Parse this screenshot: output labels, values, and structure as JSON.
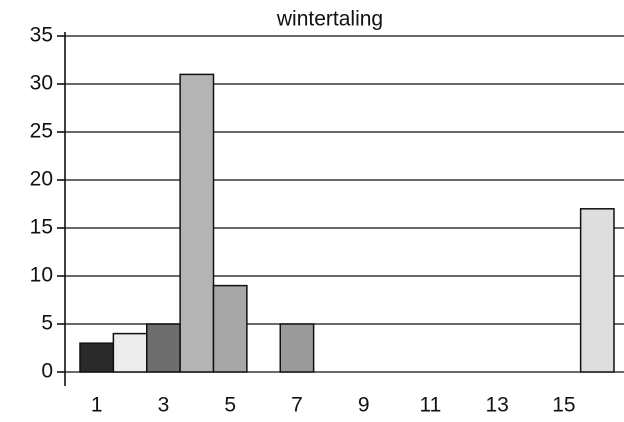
{
  "chart_data": {
    "type": "bar",
    "title": "wintertaling",
    "categories": [
      "1",
      null,
      "3",
      null,
      "5",
      null,
      "7",
      null,
      "9",
      null,
      "11",
      null,
      "13",
      null,
      "15",
      null
    ],
    "values": [
      3,
      4,
      5,
      31,
      9,
      0,
      5,
      0,
      0,
      0,
      0,
      0,
      0,
      0,
      0,
      17
    ],
    "colors": [
      "#2a2a2a",
      "#ececec",
      "#6e6e6e",
      "#b4b4b4",
      "#a8a8a8",
      "#cccccc",
      "#9a9a9a",
      "#cccccc",
      "#cccccc",
      "#cccccc",
      "#cccccc",
      "#cccccc",
      "#cccccc",
      "#cccccc",
      "#cccccc",
      "#dedede"
    ],
    "ylim": [
      0,
      35
    ],
    "yticks": [
      0,
      5,
      10,
      15,
      20,
      25,
      30,
      35
    ],
    "grid": true
  }
}
